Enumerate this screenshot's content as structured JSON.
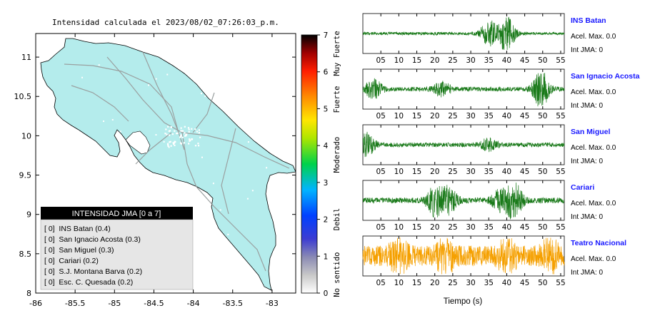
{
  "map": {
    "title": "Intensidad calculada el 2023/08/02_07:26:03_p.m.",
    "x_ticks": [
      "-86",
      "-85.5",
      "-85",
      "-84.5",
      "-84",
      "-83.5",
      "-83"
    ],
    "x_tick_values": [
      -86,
      -85.5,
      -85,
      -84.5,
      -84,
      -83.5,
      -83
    ],
    "y_ticks": [
      "11",
      "10.5",
      "10",
      "9.5",
      "9",
      "8.5",
      "8"
    ],
    "y_tick_values": [
      11,
      10.5,
      10,
      9.5,
      9,
      8.5,
      8
    ],
    "xlim": [
      -86,
      -82.7
    ],
    "ylim": [
      8,
      11.3
    ],
    "land_color": "#b4ecec",
    "legend": {
      "title": "INTENSIDAD JMA [0 a 7]",
      "items": [
        "[ 0]  INS Batan (0.4)",
        "[ 0]  San Ignacio Acosta (0.3)",
        "[ 0]  San Miguel (0.3)",
        "[ 0]  Cariari (0.2)",
        "[ 0]  S.J. Montana Barva (0.2)",
        "[ 0]  Esc. C. Quesada (0.2)"
      ]
    }
  },
  "colorbar": {
    "ticks": [
      "7",
      "6",
      "5",
      "4",
      "3",
      "2",
      "1",
      "0"
    ],
    "tick_values": [
      7,
      6,
      5,
      4,
      3,
      2,
      1,
      0
    ],
    "range": [
      0,
      7
    ],
    "category_labels": [
      "Muy Fuerte",
      "Fuerte",
      "Moderado",
      "Debil",
      "No sentido"
    ],
    "category_ranges": [
      [
        6,
        7
      ],
      [
        4.5,
        6
      ],
      [
        3,
        4.5
      ],
      [
        1,
        3
      ],
      [
        0,
        1
      ]
    ]
  },
  "waveforms": {
    "x_ticks": [
      "05",
      "10",
      "15",
      "20",
      "25",
      "30",
      "35",
      "40",
      "45",
      "50",
      "55"
    ],
    "x_tick_values": [
      5,
      10,
      15,
      20,
      25,
      30,
      35,
      40,
      45,
      50,
      55
    ],
    "xlim": [
      0,
      56
    ],
    "xlabel": "Tiempo (s)",
    "stations": [
      {
        "name": "INS Batan",
        "accel": "Acel. Max. 0.0",
        "jma": "Int JMA: 0",
        "color": "#1a7a1a"
      },
      {
        "name": "San Ignacio Acosta",
        "accel": "Acel. Max. 0.0",
        "jma": "Int JMA: 0",
        "color": "#1a7a1a"
      },
      {
        "name": "San Miguel",
        "accel": "Acel. Max. 0.0",
        "jma": "Int JMA: 0",
        "color": "#1a7a1a"
      },
      {
        "name": "Cariari",
        "accel": "Acel. Max. 0.0",
        "jma": "Int JMA: 0",
        "color": "#1a7a1a"
      },
      {
        "name": "Teatro Nacional",
        "accel": "Acel. Max. 0.0",
        "jma": "Int JMA: 0",
        "color": "#f5a000"
      }
    ]
  },
  "chart_data": [
    {
      "type": "heatmap",
      "title": "Intensidad calculada el 2023/08/02_07:26:03_p.m.",
      "xlabel": "",
      "ylabel": "",
      "xlim": [
        -86,
        -82.7
      ],
      "ylim": [
        8,
        11.3
      ],
      "colorbar_range": [
        0,
        7
      ],
      "grid": false,
      "legend_placement": "bottom-left",
      "stations": [
        {
          "name": "INS Batan",
          "intensity": 0.4,
          "class": 0
        },
        {
          "name": "San Ignacio Acosta",
          "intensity": 0.3,
          "class": 0
        },
        {
          "name": "San Miguel",
          "intensity": 0.3,
          "class": 0
        },
        {
          "name": "Cariari",
          "intensity": 0.2,
          "class": 0
        },
        {
          "name": "S.J. Montana Barva",
          "intensity": 0.2,
          "class": 0
        },
        {
          "name": "Esc. C. Quesada",
          "intensity": 0.2,
          "class": 0
        }
      ]
    },
    {
      "type": "line",
      "xlabel": "Tiempo (s)",
      "ylabel": "",
      "xlim": [
        0,
        56
      ],
      "series": [
        {
          "name": "INS Batan",
          "bursts": [
            [
              40,
              1.0
            ],
            [
              35,
              0.7
            ]
          ],
          "noise": 0.08
        },
        {
          "name": "San Ignacio Acosta",
          "bursts": [
            [
              49.5,
              1.0
            ],
            [
              3,
              0.5
            ],
            [
              22,
              0.4
            ]
          ],
          "noise": 0.12
        },
        {
          "name": "San Miguel",
          "bursts": [
            [
              1,
              0.6
            ],
            [
              35,
              0.3
            ]
          ],
          "noise": 0.12
        },
        {
          "name": "Cariari",
          "bursts": [
            [
              42,
              1.0
            ],
            [
              20,
              0.8
            ],
            [
              24,
              0.7
            ],
            [
              38,
              0.5
            ]
          ],
          "noise": 0.15
        },
        {
          "name": "Teatro Nacional",
          "bursts": [
            [
              10,
              0.9
            ],
            [
              23,
              0.7
            ],
            [
              40,
              0.8
            ],
            [
              52,
              0.7
            ]
          ],
          "noise": 0.55
        }
      ]
    }
  ]
}
